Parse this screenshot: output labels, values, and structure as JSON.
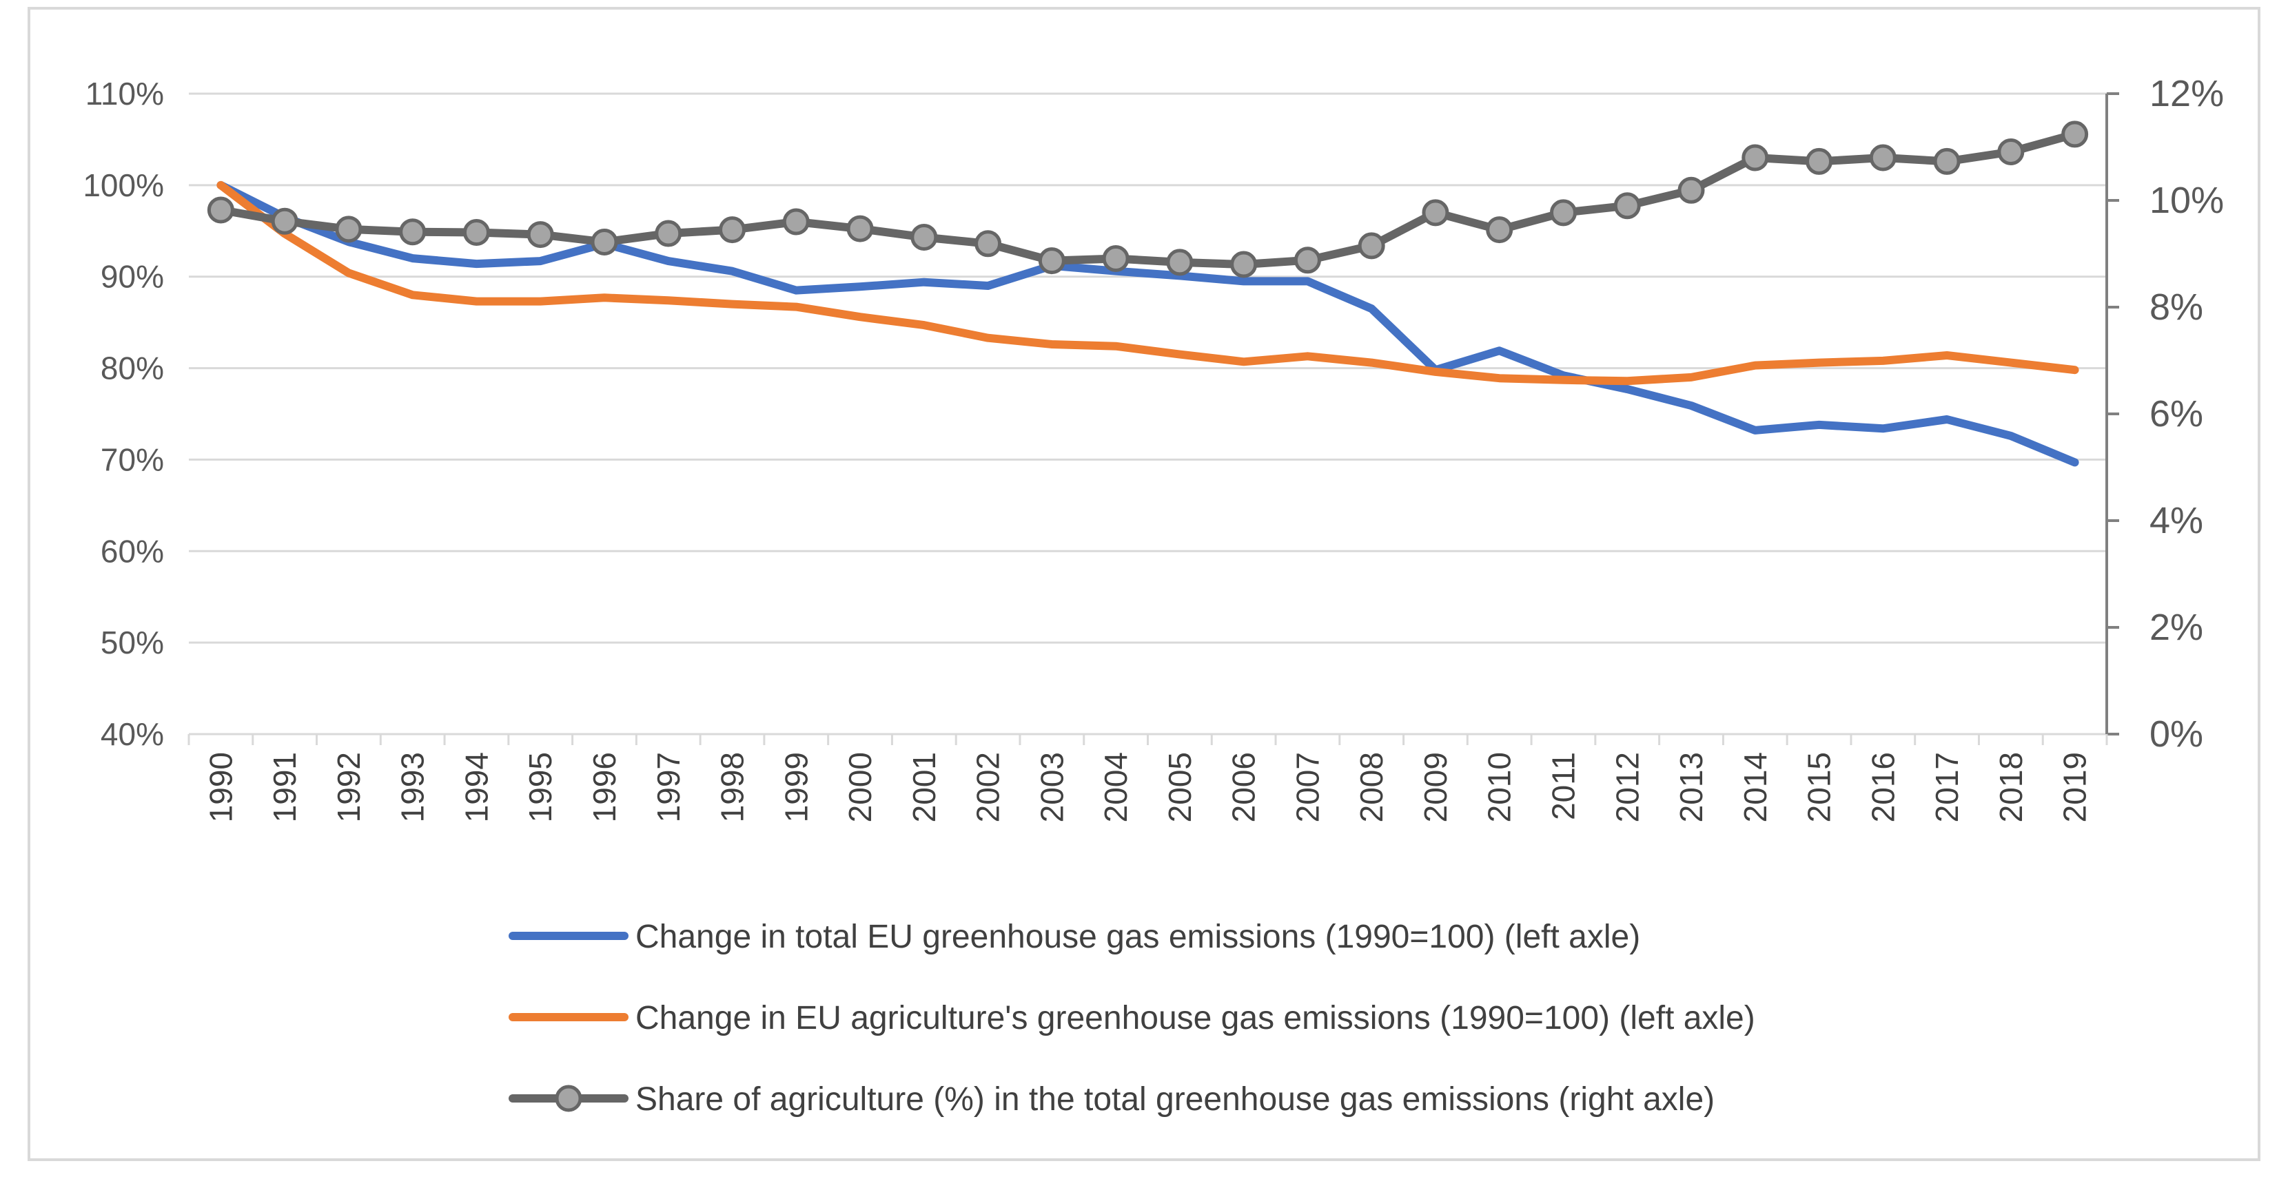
{
  "chart_data": {
    "type": "line",
    "title": "",
    "x": [
      "1990",
      "1991",
      "1992",
      "1993",
      "1994",
      "1995",
      "1996",
      "1997",
      "1998",
      "1999",
      "2000",
      "2001",
      "2002",
      "2003",
      "2004",
      "2005",
      "2006",
      "2007",
      "2008",
      "2009",
      "2010",
      "2011",
      "2012",
      "2013",
      "2014",
      "2015",
      "2016",
      "2017",
      "2018",
      "2019"
    ],
    "left_axis": {
      "ylim": [
        40,
        110
      ],
      "ticks": [
        40,
        50,
        60,
        70,
        80,
        90,
        100,
        110
      ],
      "tick_labels": [
        "40%",
        "50%",
        "60%",
        "70%",
        "80%",
        "90%",
        "100%",
        "110%"
      ]
    },
    "right_axis": {
      "ylim": [
        0,
        12
      ],
      "ticks": [
        0,
        2,
        4,
        6,
        8,
        10,
        12
      ],
      "tick_labels": [
        "0%",
        "2%",
        "4%",
        "6%",
        "8%",
        "10%",
        "12%"
      ]
    },
    "grid": true,
    "legend_position": "bottom",
    "series": [
      {
        "name": "Change in total EU greenhouse gas emissions (1990=100) (left axle)",
        "axis": "left",
        "color": "#4472c4",
        "markers": false,
        "values": [
          100,
          96.5,
          93.8,
          92.0,
          91.4,
          91.7,
          93.6,
          91.7,
          90.6,
          88.5,
          88.9,
          89.4,
          89.0,
          91.2,
          90.6,
          90.1,
          89.5,
          89.5,
          86.5,
          79.8,
          81.9,
          79.2,
          77.7,
          75.9,
          73.2,
          73.8,
          73.4,
          74.4,
          72.6,
          69.7
        ]
      },
      {
        "name": "Change in EU agriculture's greenhouse gas emissions (1990=100) (left axle)",
        "axis": "left",
        "color": "#ed7d31",
        "markers": false,
        "values": [
          100,
          94.7,
          90.4,
          88.0,
          87.3,
          87.3,
          87.7,
          87.4,
          87.0,
          86.7,
          85.6,
          84.7,
          83.3,
          82.6,
          82.4,
          81.5,
          80.7,
          81.3,
          80.6,
          79.6,
          78.9,
          78.7,
          78.6,
          79.0,
          80.3,
          80.6,
          80.8,
          81.4,
          80.6,
          79.8
        ]
      },
      {
        "name": "Share of agriculture (%) in the total greenhouse gas emissions (right axle)",
        "axis": "right",
        "color": "#666666",
        "marker_fill": "#a5a5a5",
        "markers": true,
        "values": [
          9.82,
          9.61,
          9.46,
          9.41,
          9.4,
          9.36,
          9.22,
          9.38,
          9.45,
          9.6,
          9.47,
          9.31,
          9.19,
          8.87,
          8.91,
          8.84,
          8.8,
          8.88,
          9.15,
          9.77,
          9.45,
          9.77,
          9.9,
          10.19,
          10.8,
          10.73,
          10.8,
          10.73,
          10.91,
          11.24
        ]
      }
    ]
  }
}
